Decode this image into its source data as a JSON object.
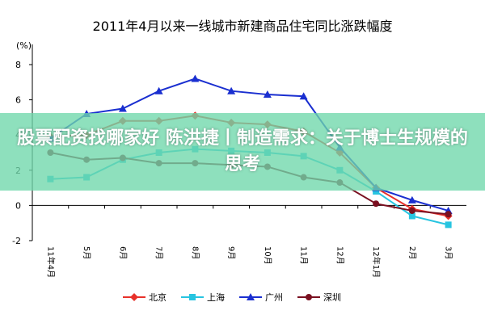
{
  "chart_data": {
    "type": "line",
    "title": "2011年4月以来一线城市新建商品住宅同比涨跌幅度",
    "y_label": "(%)",
    "categories": [
      "11年4月",
      "5月",
      "6月",
      "7月",
      "8月",
      "9月",
      "10月",
      "11月",
      "12月",
      "12年1月",
      "2月",
      "3月"
    ],
    "series": [
      {
        "name": "北京",
        "color": "#e8312a",
        "marker": "diamond",
        "values": [
          3.9,
          4.0,
          4.8,
          4.8,
          5.1,
          4.7,
          4.6,
          4.2,
          3.0,
          1.0,
          -0.2,
          -0.6
        ]
      },
      {
        "name": "上海",
        "color": "#27c4e0",
        "marker": "square",
        "values": [
          1.5,
          1.6,
          2.6,
          3.0,
          3.2,
          3.1,
          3.0,
          2.8,
          2.0,
          0.8,
          -0.6,
          -1.1
        ]
      },
      {
        "name": "广州",
        "color": "#1a2fd0",
        "marker": "triangle",
        "values": [
          3.8,
          5.2,
          5.5,
          6.5,
          7.2,
          6.5,
          6.3,
          6.2,
          3.3,
          1.0,
          0.3,
          -0.3
        ]
      },
      {
        "name": "深圳",
        "color": "#7a1020",
        "marker": "circle",
        "values": [
          3.0,
          2.6,
          2.7,
          2.4,
          2.4,
          2.3,
          2.2,
          1.6,
          1.3,
          0.1,
          -0.3,
          -0.5
        ]
      }
    ],
    "ylim": [
      -2,
      8
    ],
    "yticks": [
      -2,
      0,
      2,
      4,
      6,
      8
    ],
    "grid": false
  },
  "overlay": {
    "text": "股票配资找哪家好 陈洪捷丨制造需求：关于博士生规模的思考"
  }
}
